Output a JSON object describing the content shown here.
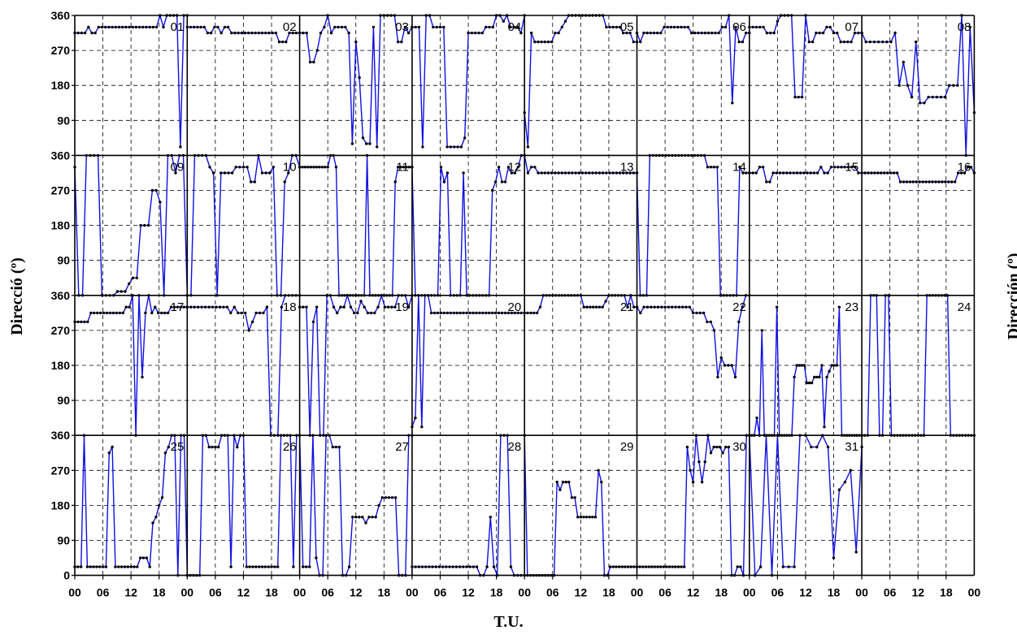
{
  "chart_data": {
    "type": "line",
    "layout": "small-multiples 4x9",
    "xlabel": "T.U.",
    "ylabel_left": "Direcció (º)",
    "ylabel_right": "Dirección (º)",
    "x_tick_labels": [
      "00",
      "06",
      "12",
      "18"
    ],
    "y_tick_labels": [
      "0",
      "90",
      "180",
      "270",
      "360"
    ],
    "y_row_top_label": "360",
    "ylim": [
      0,
      360
    ],
    "x_hours_per_panel": 24,
    "grid": true,
    "line_color": "#1010e0",
    "marker_color": "#000000",
    "series": [
      {
        "day": "01",
        "values": [
          315,
          315,
          315,
          315,
          330,
          315,
          315,
          330,
          330,
          330,
          330,
          330,
          330,
          330,
          330,
          330,
          330,
          330,
          330,
          330,
          330,
          330,
          330,
          330,
          330,
          360,
          330,
          360,
          360,
          360,
          360,
          22,
          360,
          360
        ]
      },
      {
        "day": "02",
        "values": [
          330,
          330,
          330,
          330,
          330,
          330,
          315,
          315,
          330,
          330,
          315,
          330,
          330,
          315,
          315,
          315,
          315,
          315,
          315,
          315,
          315,
          315,
          315,
          315,
          315,
          315,
          315,
          292,
          292,
          292,
          315,
          315,
          315,
          315
        ]
      },
      {
        "day": "03",
        "values": [
          315,
          315,
          315,
          240,
          240,
          270,
          315,
          330,
          360,
          315,
          330,
          330,
          330,
          330,
          315,
          30,
          292,
          200,
          45,
          30,
          30,
          330,
          22,
          360,
          360,
          360,
          360,
          360,
          292,
          292,
          330,
          315,
          330
        ]
      },
      {
        "day": "04",
        "values": [
          330,
          330,
          330,
          22,
          360,
          360,
          330,
          330,
          330,
          330,
          22,
          22,
          22,
          22,
          22,
          45,
          315,
          315,
          315,
          315,
          315,
          330,
          330,
          330,
          360,
          360,
          345,
          360,
          330,
          330,
          330,
          315,
          360
        ]
      },
      {
        "day": "05",
        "values": [
          110,
          22,
          315,
          292,
          292,
          292,
          292,
          292,
          292,
          315,
          315,
          330,
          345,
          360,
          360,
          360,
          360,
          360,
          360,
          360,
          360,
          360,
          360,
          360,
          330,
          330,
          330,
          330,
          330,
          315,
          315,
          315,
          292,
          292
        ]
      },
      {
        "day": "06",
        "values": [
          315,
          292,
          315,
          315,
          315,
          315,
          315,
          315,
          330,
          330,
          330,
          330,
          330,
          330,
          330,
          330,
          315,
          315,
          315,
          315,
          315,
          315,
          315,
          315,
          315,
          330,
          330,
          360,
          135,
          330,
          292,
          292,
          315,
          315
        ]
      },
      {
        "day": "07",
        "values": [
          330,
          330,
          330,
          330,
          330,
          315,
          315,
          315,
          345,
          360,
          360,
          360,
          360,
          150,
          150,
          150,
          360,
          292,
          292,
          315,
          315,
          315,
          330,
          330,
          315,
          315,
          292,
          292,
          292,
          292,
          315,
          315,
          315
        ]
      },
      {
        "day": "08",
        "values": [
          315,
          292,
          292,
          292,
          292,
          292,
          292,
          292,
          315,
          180,
          240,
          180,
          150,
          292,
          135,
          135,
          150,
          150,
          150,
          150,
          150,
          180,
          180,
          180,
          360,
          0,
          330,
          110
        ]
      },
      {
        "day": "09",
        "values": [
          330,
          0,
          0,
          360,
          360,
          360,
          360,
          0,
          0,
          0,
          0,
          10,
          10,
          10,
          30,
          45,
          45,
          180,
          180,
          180,
          270,
          270,
          240,
          0,
          360,
          360,
          315,
          360,
          360,
          0
        ]
      },
      {
        "day": "10",
        "values": [
          0,
          0,
          360,
          360,
          360,
          360,
          330,
          315,
          0,
          315,
          315,
          315,
          315,
          330,
          330,
          330,
          330,
          292,
          292,
          360,
          315,
          315,
          315,
          330,
          0,
          0,
          292,
          315,
          360,
          360,
          330
        ]
      },
      {
        "day": "11",
        "values": [
          330,
          330,
          330,
          330,
          330,
          330,
          330,
          330,
          330,
          330,
          330,
          360,
          360,
          330,
          0,
          0,
          0,
          0,
          0,
          0,
          0,
          0,
          0,
          0,
          360,
          0,
          0,
          0,
          0,
          0,
          0,
          0,
          0,
          0,
          292,
          330,
          330,
          330,
          330,
          330,
          330
        ]
      },
      {
        "day": "12",
        "values": [
          330,
          0,
          0,
          0,
          0,
          0,
          0,
          0,
          0,
          330,
          292,
          315,
          0,
          0,
          0,
          0,
          315,
          0,
          0,
          0,
          0,
          0,
          0,
          0,
          0,
          270,
          292,
          330,
          292,
          292,
          330,
          315,
          315,
          330,
          360,
          360
        ]
      },
      {
        "day": "13",
        "values": [
          360,
          315,
          330,
          330,
          315,
          315,
          315,
          315,
          315,
          315,
          315,
          315,
          315,
          315,
          315,
          315,
          315,
          315,
          315,
          315,
          315,
          315,
          315,
          315,
          315,
          315,
          315,
          315,
          315,
          315,
          315,
          315,
          315,
          315
        ]
      },
      {
        "day": "14",
        "values": [
          315,
          0,
          0,
          0,
          360,
          360,
          360,
          360,
          360,
          360,
          360,
          360,
          360,
          360,
          360,
          360,
          360,
          360,
          360,
          360,
          360,
          360,
          330,
          330,
          330,
          330,
          0,
          0,
          0,
          0,
          0,
          0,
          330,
          315,
          315,
          315
        ]
      },
      {
        "day": "15",
        "values": [
          315,
          315,
          315,
          330,
          330,
          292,
          292,
          315,
          315,
          315,
          315,
          315,
          315,
          315,
          315,
          315,
          315,
          315,
          315,
          315,
          315,
          330,
          315,
          315,
          330,
          330,
          330,
          330,
          330,
          330,
          330,
          330,
          315,
          315
        ]
      },
      {
        "day": "16",
        "values": [
          315,
          315,
          315,
          315,
          315,
          315,
          315,
          315,
          315,
          315,
          315,
          315,
          292,
          292,
          292,
          292,
          292,
          292,
          292,
          292,
          292,
          292,
          292,
          292,
          292,
          292,
          292,
          292,
          292,
          292,
          315,
          315,
          315,
          330,
          330,
          315
        ]
      },
      {
        "day": "17",
        "values": [
          292,
          292,
          292,
          292,
          292,
          315,
          315,
          315,
          315,
          315,
          315,
          315,
          315,
          315,
          315,
          315,
          330,
          330,
          360,
          0,
          360,
          150,
          315,
          360,
          315,
          330,
          315,
          315,
          315,
          315,
          330,
          330,
          330,
          330,
          330,
          330
        ]
      },
      {
        "day": "18",
        "values": [
          330,
          330,
          330,
          330,
          330,
          330,
          330,
          330,
          330,
          330,
          330,
          330,
          315,
          330,
          315,
          315,
          315,
          270,
          292,
          315,
          315,
          315,
          330,
          0,
          0,
          0,
          330,
          360,
          360,
          360,
          360,
          360
        ]
      },
      {
        "day": "19",
        "values": [
          330,
          330,
          330,
          0,
          292,
          330,
          0,
          0,
          360,
          360,
          330,
          315,
          330,
          330,
          360,
          330,
          315,
          315,
          345,
          330,
          315,
          315,
          315,
          330,
          360,
          330,
          330,
          330,
          330,
          360,
          360,
          360,
          330,
          360
        ]
      },
      {
        "day": "20",
        "values": [
          22,
          45,
          360,
          22,
          360,
          360,
          315,
          315,
          315,
          315,
          315,
          315,
          315,
          315,
          315,
          315,
          315,
          315,
          315,
          315,
          315,
          315,
          315,
          315,
          315,
          315,
          315,
          315,
          315,
          315,
          315,
          315,
          315,
          315,
          315,
          315
        ]
      },
      {
        "day": "21",
        "values": [
          315,
          315,
          315,
          315,
          315,
          330,
          360,
          360,
          360,
          360,
          360,
          360,
          360,
          360,
          360,
          360,
          360,
          360,
          360,
          330,
          330,
          330,
          330,
          330,
          330,
          330,
          345,
          360,
          360,
          360,
          360,
          360,
          360,
          330,
          360,
          330,
          330
        ]
      },
      {
        "day": "22",
        "values": [
          330,
          315,
          330,
          330,
          330,
          330,
          330,
          330,
          330,
          330,
          330,
          330,
          330,
          330,
          330,
          330,
          315,
          315,
          315,
          315,
          292,
          292,
          270,
          150,
          200,
          180,
          180,
          180,
          150,
          292,
          330,
          360,
          360
        ]
      },
      {
        "day": "23",
        "values": [
          0,
          0,
          0,
          45,
          0,
          270,
          0,
          0,
          0,
          0,
          0,
          330,
          0,
          0,
          0,
          0,
          0,
          0,
          150,
          180,
          180,
          180,
          180,
          135,
          135,
          135,
          150,
          150,
          150,
          180,
          22,
          150,
          165,
          180,
          180,
          180,
          330,
          0,
          0,
          0,
          0,
          0,
          0,
          0,
          0,
          0
        ]
      },
      {
        "day": "24",
        "values": [
          0,
          0,
          0,
          360,
          360,
          360,
          0,
          0,
          360,
          360,
          0,
          0,
          0,
          0,
          0,
          0,
          0,
          0,
          0,
          0,
          0,
          0,
          360,
          360,
          360,
          360,
          360,
          360,
          360,
          360,
          0,
          0,
          0,
          0,
          0,
          0,
          0,
          0,
          0
        ]
      },
      {
        "day": "25",
        "values": [
          22,
          22,
          22,
          360,
          22,
          22,
          22,
          22,
          22,
          22,
          22,
          315,
          330,
          22,
          22,
          22,
          22,
          22,
          22,
          22,
          22,
          45,
          45,
          45,
          22,
          135,
          150,
          180,
          200,
          315,
          330,
          360,
          360,
          0,
          360,
          360,
          0
        ]
      },
      {
        "day": "26",
        "values": [
          0,
          0,
          0,
          0,
          0,
          360,
          360,
          330,
          330,
          330,
          330,
          360,
          360,
          360,
          22,
          360,
          330,
          360,
          360,
          22,
          22,
          22,
          22,
          22,
          22,
          22,
          22,
          22,
          22,
          22,
          360,
          360,
          360,
          360,
          22,
          360,
          360
        ]
      },
      {
        "day": "27",
        "values": [
          360,
          22,
          22,
          22,
          360,
          45,
          0,
          0,
          360,
          360,
          330,
          330,
          330,
          0,
          0,
          22,
          150,
          150,
          150,
          150,
          135,
          150,
          150,
          150,
          180,
          200,
          200,
          200,
          200,
          200,
          0,
          0,
          0,
          360,
          360
        ]
      },
      {
        "day": "28",
        "values": [
          22,
          22,
          22,
          22,
          22,
          22,
          22,
          22,
          22,
          22,
          22,
          22,
          22,
          22,
          22,
          22,
          22,
          22,
          22,
          22,
          0,
          0,
          22,
          150,
          22,
          0,
          360,
          360,
          360,
          22,
          0,
          0,
          0,
          0
        ]
      },
      {
        "day": "29",
        "values": [
          360,
          0,
          0,
          0,
          0,
          0,
          0,
          0,
          0,
          0,
          0,
          240,
          220,
          240,
          240,
          240,
          200,
          200,
          150,
          150,
          150,
          150,
          150,
          150,
          150,
          270,
          240,
          0,
          0,
          22,
          22,
          22,
          22,
          22,
          22,
          22,
          22,
          22,
          22
        ]
      },
      {
        "day": "30",
        "values": [
          22,
          22,
          22,
          22,
          22,
          22,
          22,
          22,
          22,
          22,
          22,
          22,
          22,
          22,
          22,
          22,
          22,
          330,
          270,
          240,
          360,
          292,
          240,
          292,
          360,
          315,
          330,
          330,
          330,
          315,
          330,
          330,
          0,
          0,
          22,
          22,
          0,
          360,
          360
        ]
      },
      {
        "day": "31",
        "values": [
          360,
          0,
          22,
          360,
          0,
          360,
          22,
          22,
          22,
          360,
          360,
          330,
          330,
          360,
          330,
          45,
          220,
          240,
          270,
          60,
          330
        ]
      }
    ]
  }
}
